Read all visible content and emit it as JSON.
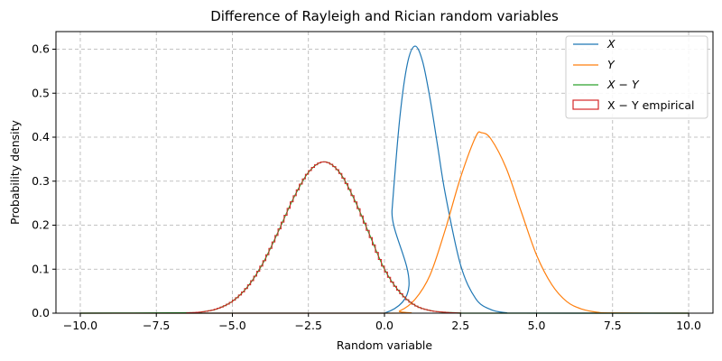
{
  "chart_data": {
    "type": "line",
    "title": "Difference of Rayleigh and Rician random variables",
    "xlabel": "Random variable",
    "ylabel": "Probability density",
    "xlim": [
      -10.8,
      10.8
    ],
    "ylim": [
      0,
      0.64
    ],
    "xticks": [
      -10.0,
      -7.5,
      -5.0,
      -2.5,
      0.0,
      2.5,
      5.0,
      7.5,
      10.0
    ],
    "xtick_labels": [
      "−10.0",
      "−7.5",
      "−5.0",
      "−2.5",
      "0.0",
      "2.5",
      "5.0",
      "7.5",
      "10.0"
    ],
    "yticks": [
      0.0,
      0.1,
      0.2,
      0.3,
      0.4,
      0.5,
      0.6
    ],
    "ytick_labels": [
      "0.0",
      "0.1",
      "0.2",
      "0.3",
      "0.4",
      "0.5",
      "0.6"
    ],
    "grid": true,
    "legend_position": "top-right",
    "series": [
      {
        "name": "X",
        "color": "#1f77b4",
        "x": [
          -10,
          0,
          0.25,
          0.5,
          0.75,
          1.0,
          1.25,
          1.5,
          1.75,
          2.0,
          2.5,
          3.0,
          3.5,
          4.0,
          4.5,
          10
        ],
        "y": [
          0,
          0,
          0.235,
          0.441,
          0.566,
          0.607,
          0.573,
          0.487,
          0.379,
          0.271,
          0.11,
          0.033,
          0.008,
          0.001,
          0.0001,
          0
        ]
      },
      {
        "name": "Y",
        "color": "#ff7f0e",
        "x": [
          -10,
          0,
          0.5,
          1.0,
          1.5,
          2.0,
          2.5,
          3.0,
          3.2,
          3.5,
          4.0,
          4.5,
          5.0,
          5.5,
          6.0,
          6.5,
          7.0,
          7.5,
          10
        ],
        "y": [
          0,
          0,
          0.005,
          0.031,
          0.087,
          0.19,
          0.308,
          0.401,
          0.41,
          0.396,
          0.33,
          0.23,
          0.132,
          0.065,
          0.026,
          0.009,
          0.002,
          0.0005,
          0
        ]
      },
      {
        "name": "X − Y",
        "color": "#2ca02c",
        "x": [
          -10,
          -6.5,
          -6.0,
          -5.5,
          -5.0,
          -4.5,
          -4.0,
          -3.5,
          -3.0,
          -2.5,
          -2.0,
          -1.5,
          -1.0,
          -0.5,
          0.0,
          0.5,
          1.0,
          1.5,
          2.0,
          2.5,
          3.0,
          10
        ],
        "y": [
          0,
          0.001,
          0.003,
          0.01,
          0.027,
          0.06,
          0.113,
          0.184,
          0.26,
          0.32,
          0.344,
          0.322,
          0.26,
          0.18,
          0.1,
          0.048,
          0.018,
          0.006,
          0.002,
          0.0005,
          0,
          0
        ]
      }
    ],
    "histogram": {
      "name": "X − Y empirical",
      "color": "#d62728",
      "x_range": [
        -6.5,
        2.5
      ],
      "bin_width": 0.1
    }
  },
  "legend": {
    "items": [
      {
        "label": "X",
        "kind": "line",
        "color": "#1f77b4"
      },
      {
        "label": "Y",
        "kind": "line",
        "color": "#ff7f0e"
      },
      {
        "label": "X − Y",
        "kind": "line",
        "color": "#2ca02c"
      },
      {
        "label": "X − Y empirical",
        "kind": "patch",
        "color": "#d62728"
      }
    ]
  }
}
